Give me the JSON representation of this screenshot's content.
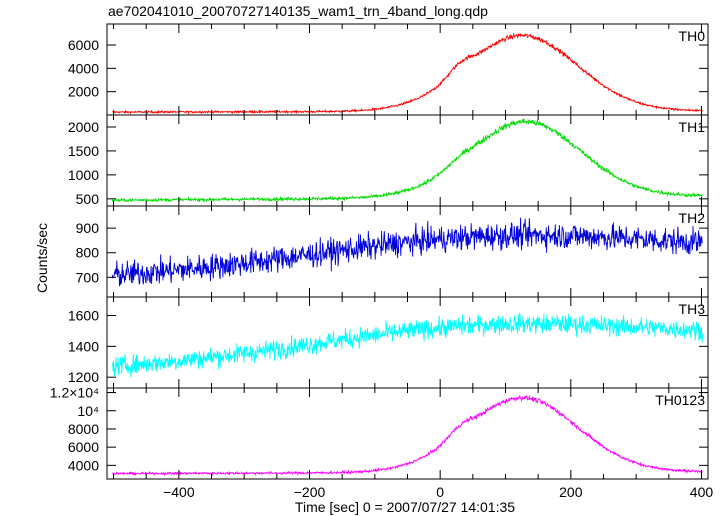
{
  "title": "ae702041010_20070727140135_wam1_trn_4band_long.qdp",
  "ylabel": "Counts/sec",
  "xlabel": "Time [sec] 0 = 2007/07/27 14:01:35",
  "chart_data": {
    "type": "line",
    "xlim": [
      -510,
      410
    ],
    "x_ticks": [
      "−400",
      "−200",
      "0",
      "200",
      "400"
    ],
    "x_tick_values": [
      -400,
      -200,
      0,
      200,
      400
    ],
    "panels": [
      {
        "name": "TH0",
        "color": "#ff0000",
        "ylim": [
          0,
          7800
        ],
        "y_ticks": [
          "2000",
          "4000",
          "6000"
        ],
        "y_tick_values": [
          2000,
          4000,
          6000
        ],
        "baseline_start": 250,
        "baseline_end": 350,
        "noise": 60,
        "components": [
          {
            "amp": 6500,
            "center": 125,
            "width": 85
          },
          {
            "amp": 700,
            "center": 30,
            "width": 18
          }
        ]
      },
      {
        "name": "TH1",
        "color": "#00dd00",
        "ylim": [
          350,
          2250
        ],
        "y_ticks": [
          "500",
          "1000",
          "1500",
          "2000"
        ],
        "y_tick_values": [
          500,
          1000,
          1500,
          2000
        ],
        "baseline_start": 470,
        "baseline_end": 560,
        "noise": 22,
        "components": [
          {
            "amp": 1580,
            "center": 130,
            "width": 85
          },
          {
            "amp": 80,
            "center": 30,
            "width": 20
          }
        ]
      },
      {
        "name": "TH2",
        "color": "#0000dd",
        "ylim": [
          620,
          990
        ],
        "y_ticks": [
          "700",
          "800",
          "900"
        ],
        "y_tick_values": [
          700,
          800,
          900
        ],
        "baseline_start": 700,
        "baseline_end": 790,
        "noise": 38,
        "components": [
          {
            "amp": 110,
            "center": 80,
            "width": 260
          }
        ]
      },
      {
        "name": "TH3",
        "color": "#00ffff",
        "ylim": [
          1130,
          1720
        ],
        "y_ticks": [
          "1200",
          "1400",
          "1600"
        ],
        "y_tick_values": [
          1200,
          1400,
          1600
        ],
        "baseline_start": 1260,
        "baseline_end": 1450,
        "noise": 45,
        "components": [
          {
            "amp": 160,
            "center": 60,
            "width": 240
          }
        ]
      },
      {
        "name": "TH0123",
        "color": "#ff00ff",
        "ylim": [
          2500,
          12500
        ],
        "y_ticks": [
          "4000",
          "6000",
          "8000",
          "10⁴",
          "1.2×10⁴"
        ],
        "y_tick_values": [
          4000,
          6000,
          8000,
          10000,
          12000
        ],
        "baseline_start": 3100,
        "baseline_end": 3300,
        "noise": 90,
        "components": [
          {
            "amp": 8200,
            "center": 125,
            "width": 85
          },
          {
            "amp": 800,
            "center": 30,
            "width": 18
          }
        ]
      }
    ]
  }
}
